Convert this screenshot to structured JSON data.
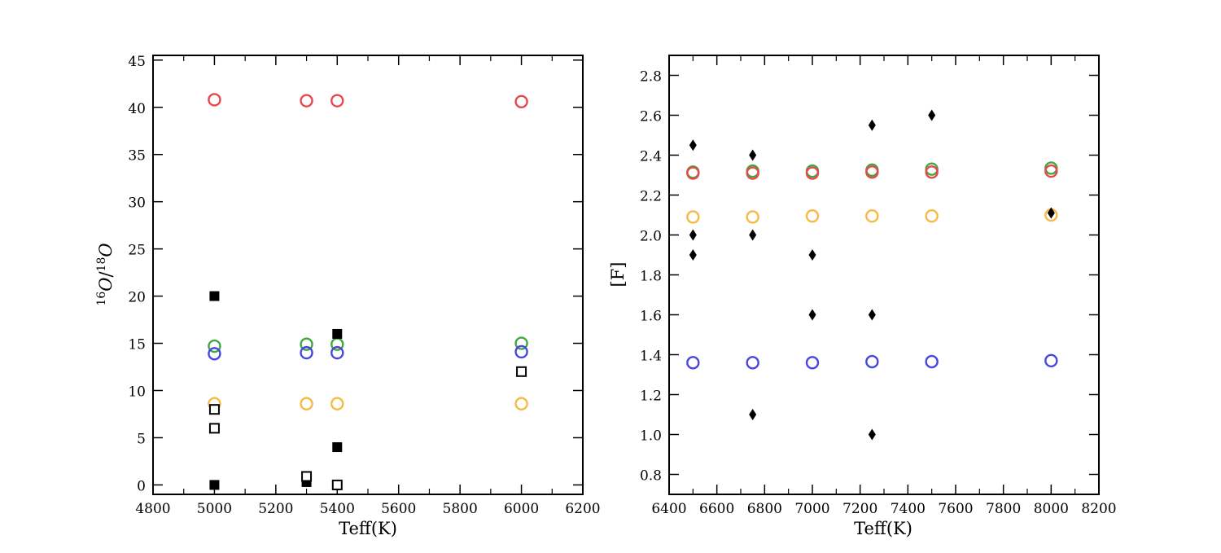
{
  "chart_data": [
    {
      "type": "scatter",
      "xlabel": "Teff(K)",
      "ylabel": "16O/18O",
      "ylabel_parts": {
        "sup1": "16",
        "o1": "O",
        "slash": "/",
        "sup2": "18",
        "o2": "O"
      },
      "xlim": [
        4800,
        6200
      ],
      "ylim": [
        -1,
        45.5
      ],
      "x_ticks": [
        4800,
        5000,
        5200,
        5400,
        5600,
        5800,
        6000,
        6200
      ],
      "y_ticks": [
        0,
        5,
        10,
        15,
        20,
        25,
        30,
        35,
        40,
        45
      ],
      "grid": false,
      "series": [
        {
          "marker": "open-circle",
          "color": "#e8474c",
          "points": [
            [
              5000,
              40.8
            ],
            [
              5300,
              40.7
            ],
            [
              5400,
              40.7
            ],
            [
              6000,
              40.6
            ]
          ]
        },
        {
          "marker": "open-circle",
          "color": "#3fa83f",
          "points": [
            [
              5000,
              14.7
            ],
            [
              5300,
              14.9
            ],
            [
              5400,
              14.9
            ],
            [
              6000,
              15.0
            ]
          ]
        },
        {
          "marker": "open-circle",
          "color": "#4646e0",
          "points": [
            [
              5000,
              13.9
            ],
            [
              5300,
              14.0
            ],
            [
              5400,
              14.0
            ],
            [
              6000,
              14.1
            ]
          ]
        },
        {
          "marker": "open-circle",
          "color": "#f7b944",
          "points": [
            [
              5000,
              8.6
            ],
            [
              5300,
              8.6
            ],
            [
              5400,
              8.6
            ],
            [
              6000,
              8.6
            ]
          ]
        },
        {
          "marker": "filled-square",
          "color": "#000000",
          "points": [
            [
              5000,
              20.0
            ],
            [
              5000,
              0.0
            ],
            [
              5300,
              0.3
            ],
            [
              5400,
              16.0
            ],
            [
              5400,
              4.0
            ]
          ]
        },
        {
          "marker": "open-square",
          "color": "#000000",
          "points": [
            [
              5000,
              8.0
            ],
            [
              5000,
              6.0
            ],
            [
              5300,
              0.9
            ],
            [
              5400,
              0.0
            ],
            [
              6000,
              12.0
            ]
          ]
        }
      ]
    },
    {
      "type": "scatter",
      "xlabel": "Teff(K)",
      "ylabel": "[F]",
      "xlim": [
        6400,
        8200
      ],
      "ylim": [
        0.7,
        2.9
      ],
      "x_ticks": [
        6400,
        6600,
        6800,
        7000,
        7200,
        7400,
        7600,
        7800,
        8000,
        8200
      ],
      "y_ticks": [
        0.8,
        1.0,
        1.2,
        1.4,
        1.6,
        1.8,
        2.0,
        2.2,
        2.4,
        2.6,
        2.8
      ],
      "y_tick_labels": [
        "0.8",
        "1.0",
        "1.2",
        "1.4",
        "1.6",
        "1.8",
        "2.0",
        "2.2",
        "2.4",
        "2.6",
        "2.8"
      ],
      "grid": false,
      "series": [
        {
          "marker": "open-circle",
          "color": "#3fa83f",
          "points": [
            [
              6500,
              2.315
            ],
            [
              6750,
              2.32
            ],
            [
              7000,
              2.32
            ],
            [
              7250,
              2.325
            ],
            [
              7500,
              2.33
            ],
            [
              8000,
              2.335
            ]
          ]
        },
        {
          "marker": "open-circle",
          "color": "#e8474c",
          "points": [
            [
              6500,
              2.31
            ],
            [
              6750,
              2.31
            ],
            [
              7000,
              2.31
            ],
            [
              7250,
              2.315
            ],
            [
              7500,
              2.315
            ],
            [
              8000,
              2.32
            ]
          ]
        },
        {
          "marker": "open-circle",
          "color": "#f7b944",
          "points": [
            [
              6500,
              2.09
            ],
            [
              6750,
              2.09
            ],
            [
              7000,
              2.095
            ],
            [
              7250,
              2.095
            ],
            [
              7500,
              2.095
            ],
            [
              8000,
              2.1
            ]
          ]
        },
        {
          "marker": "open-circle",
          "color": "#4646e0",
          "points": [
            [
              6500,
              1.36
            ],
            [
              6750,
              1.36
            ],
            [
              7000,
              1.36
            ],
            [
              7250,
              1.365
            ],
            [
              7500,
              1.365
            ],
            [
              8000,
              1.37
            ]
          ]
        },
        {
          "marker": "diamond",
          "color": "#000000",
          "points": [
            [
              6500,
              2.45
            ],
            [
              6500,
              2.0
            ],
            [
              6500,
              1.9
            ],
            [
              6750,
              2.4
            ],
            [
              6750,
              2.0
            ],
            [
              6750,
              1.1
            ],
            [
              7000,
              1.9
            ],
            [
              7000,
              1.6
            ],
            [
              7250,
              2.55
            ],
            [
              7250,
              1.6
            ],
            [
              7250,
              1.0
            ],
            [
              7500,
              2.6
            ],
            [
              8000,
              2.11
            ]
          ]
        }
      ]
    }
  ]
}
